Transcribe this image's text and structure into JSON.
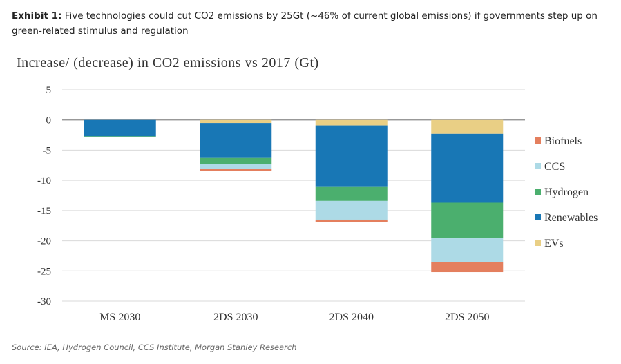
{
  "header": {
    "prefix": "Exhibit 1:",
    "text": " Five technologies could cut CO2 emissions by 25Gt (~46% of current global emissions) if governments step up on green-related stimulus and regulation"
  },
  "source": "Source: IEA, Hydrogen Council, CCS Institute, Morgan Stanley Research",
  "chart_data": {
    "type": "bar",
    "stacked": true,
    "title": "Increase/ (decrease) in CO2 emissions vs 2017 (Gt)",
    "categories": [
      "MS 2030",
      "2DS 2030",
      "2DS 2040",
      "2DS 2050"
    ],
    "ylim": [
      -30,
      5
    ],
    "yticks": [
      5,
      0,
      -5,
      -10,
      -15,
      -20,
      -25,
      -30
    ],
    "grid": true,
    "legend_position": "right",
    "series": [
      {
        "name": "EVs",
        "color": "#E9CF85",
        "values": [
          0,
          -0.5,
          -0.9,
          -2.3
        ]
      },
      {
        "name": "Renewables",
        "color": "#1877B5",
        "values": [
          -2.7,
          -5.8,
          -10.2,
          -11.4
        ]
      },
      {
        "name": "Hydrogen",
        "color": "#4BAF6E",
        "values": [
          -0.1,
          -1.0,
          -2.3,
          -5.9
        ]
      },
      {
        "name": "CCS",
        "color": "#ADDAE6",
        "values": [
          0,
          -0.8,
          -3.1,
          -3.9
        ]
      },
      {
        "name": "Biofuels",
        "color": "#E47F5E",
        "values": [
          0,
          -0.3,
          -0.4,
          -1.7
        ]
      }
    ],
    "legend_order": [
      "Biofuels",
      "CCS",
      "Hydrogen",
      "Renewables",
      "EVs"
    ]
  }
}
